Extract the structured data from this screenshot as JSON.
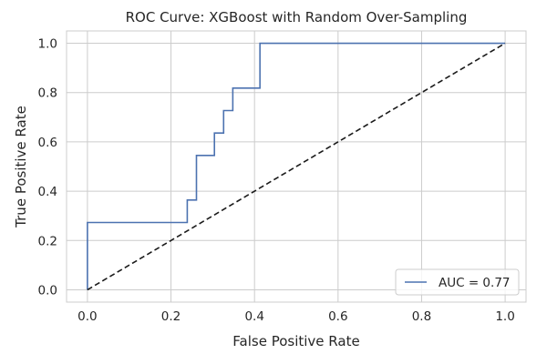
{
  "chart_data": {
    "type": "line",
    "title": "ROC Curve: XGBoost with Random Over-Sampling",
    "xlabel": "False Positive Rate",
    "ylabel": "True Positive Rate",
    "xlim": [
      -0.05,
      1.05
    ],
    "ylim": [
      -0.05,
      1.05
    ],
    "xticks": [
      0.0,
      0.2,
      0.4,
      0.6,
      0.8,
      1.0
    ],
    "xtick_labels": [
      "0.0",
      "0.2",
      "0.4",
      "0.6",
      "0.8",
      "1.0"
    ],
    "yticks": [
      0.0,
      0.2,
      0.4,
      0.6,
      0.8,
      1.0
    ],
    "ytick_labels": [
      "0.0",
      "0.2",
      "0.4",
      "0.6",
      "0.8",
      "1.0"
    ],
    "grid": true,
    "legend_position": "lower-right",
    "series": [
      {
        "name": "AUC = 0.77",
        "style": "solid",
        "color": "#4c72b0",
        "x": [
          0.0,
          0.0,
          0.239,
          0.239,
          0.261,
          0.261,
          0.304,
          0.304,
          0.326,
          0.326,
          0.348,
          0.348,
          0.413,
          0.413,
          1.0
        ],
        "y": [
          0.0,
          0.273,
          0.273,
          0.364,
          0.364,
          0.545,
          0.545,
          0.636,
          0.636,
          0.727,
          0.727,
          0.818,
          0.818,
          1.0,
          1.0
        ]
      },
      {
        "style": "dashed",
        "color": "#1a1a1a",
        "x": [
          0.0,
          1.0
        ],
        "y": [
          0.0,
          1.0
        ]
      }
    ]
  }
}
